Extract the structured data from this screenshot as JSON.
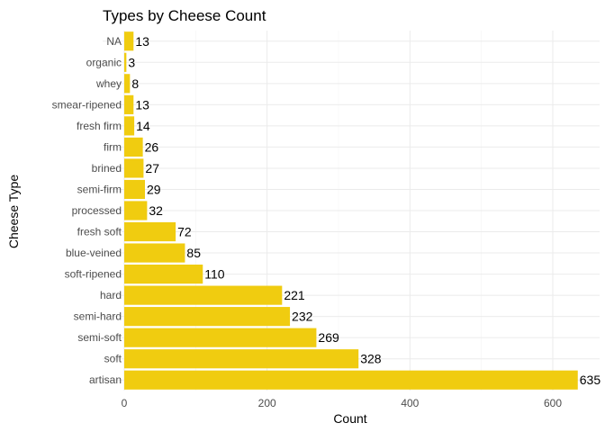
{
  "chart_data": {
    "type": "bar",
    "orientation": "horizontal",
    "title": "Types by Cheese Count",
    "xlabel": "Count",
    "ylabel": "Cheese Type",
    "categories": [
      "artisan",
      "soft",
      "semi-soft",
      "semi-hard",
      "hard",
      "soft-ripened",
      "blue-veined",
      "fresh soft",
      "processed",
      "semi-firm",
      "brined",
      "firm",
      "fresh firm",
      "smear-ripened",
      "whey",
      "organic",
      "NA"
    ],
    "values": [
      635,
      328,
      269,
      232,
      221,
      110,
      85,
      72,
      32,
      29,
      27,
      26,
      14,
      13,
      8,
      3,
      13
    ],
    "xlim": [
      0,
      660
    ],
    "xticks": [
      0,
      200,
      400,
      600
    ],
    "grid": true,
    "legend": "none",
    "bar_color": "#f0cc10"
  }
}
